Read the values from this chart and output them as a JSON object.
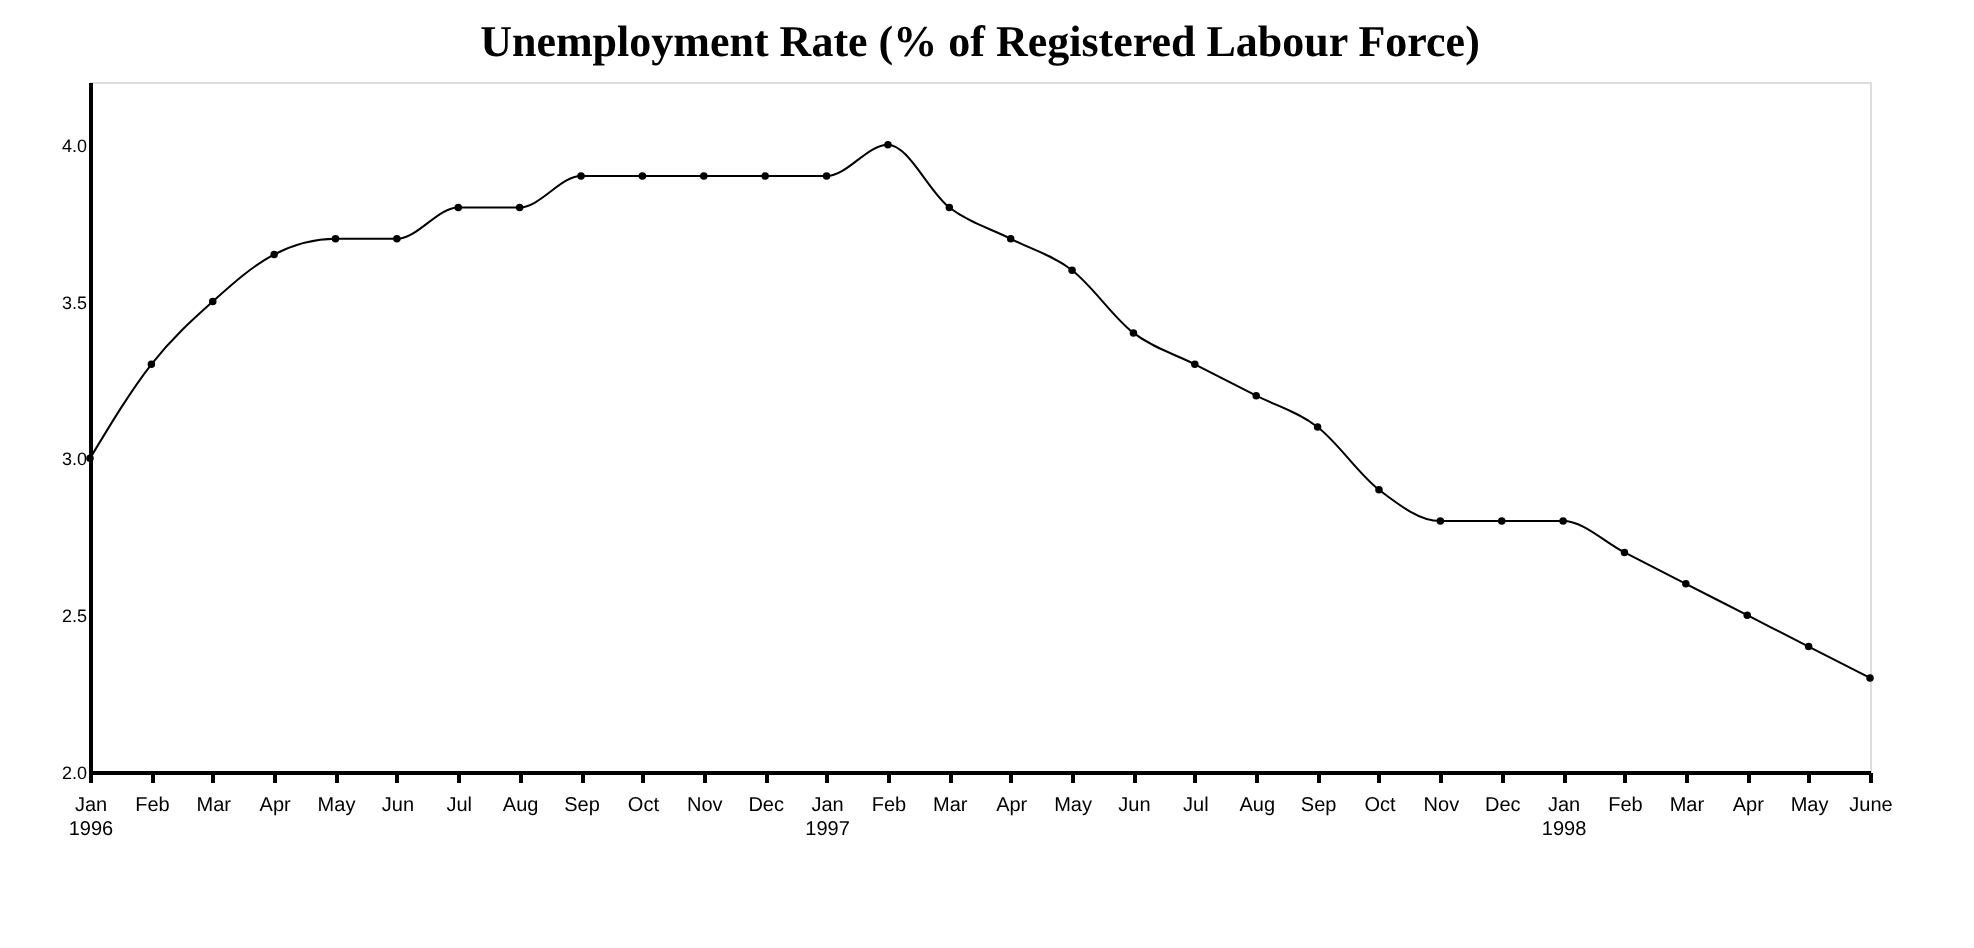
{
  "chart_data": {
    "type": "line",
    "title": "Unemployment Rate (% of Registered Labour Force)",
    "categories": [
      "Jan\n1996",
      "Feb",
      "Mar",
      "Apr",
      "May",
      "Jun",
      "Jul",
      "Aug",
      "Sep",
      "Oct",
      "Nov",
      "Dec",
      "Jan\n1997",
      "Feb",
      "Mar",
      "Apr",
      "May",
      "Jun",
      "Jul",
      "Aug",
      "Sep",
      "Oct",
      "Nov",
      "Dec",
      "Jan\n1998",
      "Feb",
      "Mar",
      "Apr",
      "May",
      "June"
    ],
    "series": [
      {
        "color": "#000000",
        "values": [
          3.0,
          3.3,
          3.5,
          3.65,
          3.7,
          3.7,
          3.8,
          3.8,
          3.9,
          3.9,
          3.9,
          3.9,
          3.9,
          4.0,
          3.8,
          3.7,
          3.6,
          3.4,
          3.3,
          3.2,
          3.1,
          2.9,
          2.8,
          2.8,
          2.8,
          2.7,
          2.6,
          2.5,
          2.4,
          2.3
        ]
      }
    ],
    "ylim": [
      2.0,
      4.2
    ],
    "yticks": [
      {
        "value": 2.0,
        "label": "2.0"
      },
      {
        "value": 2.5,
        "label": "2.5"
      },
      {
        "value": 3.0,
        "label": "3.0"
      },
      {
        "value": 3.5,
        "label": "3.5"
      },
      {
        "value": 4.0,
        "label": "4.0"
      }
    ],
    "grid": false,
    "marker": "circle",
    "line_style": "solid"
  }
}
